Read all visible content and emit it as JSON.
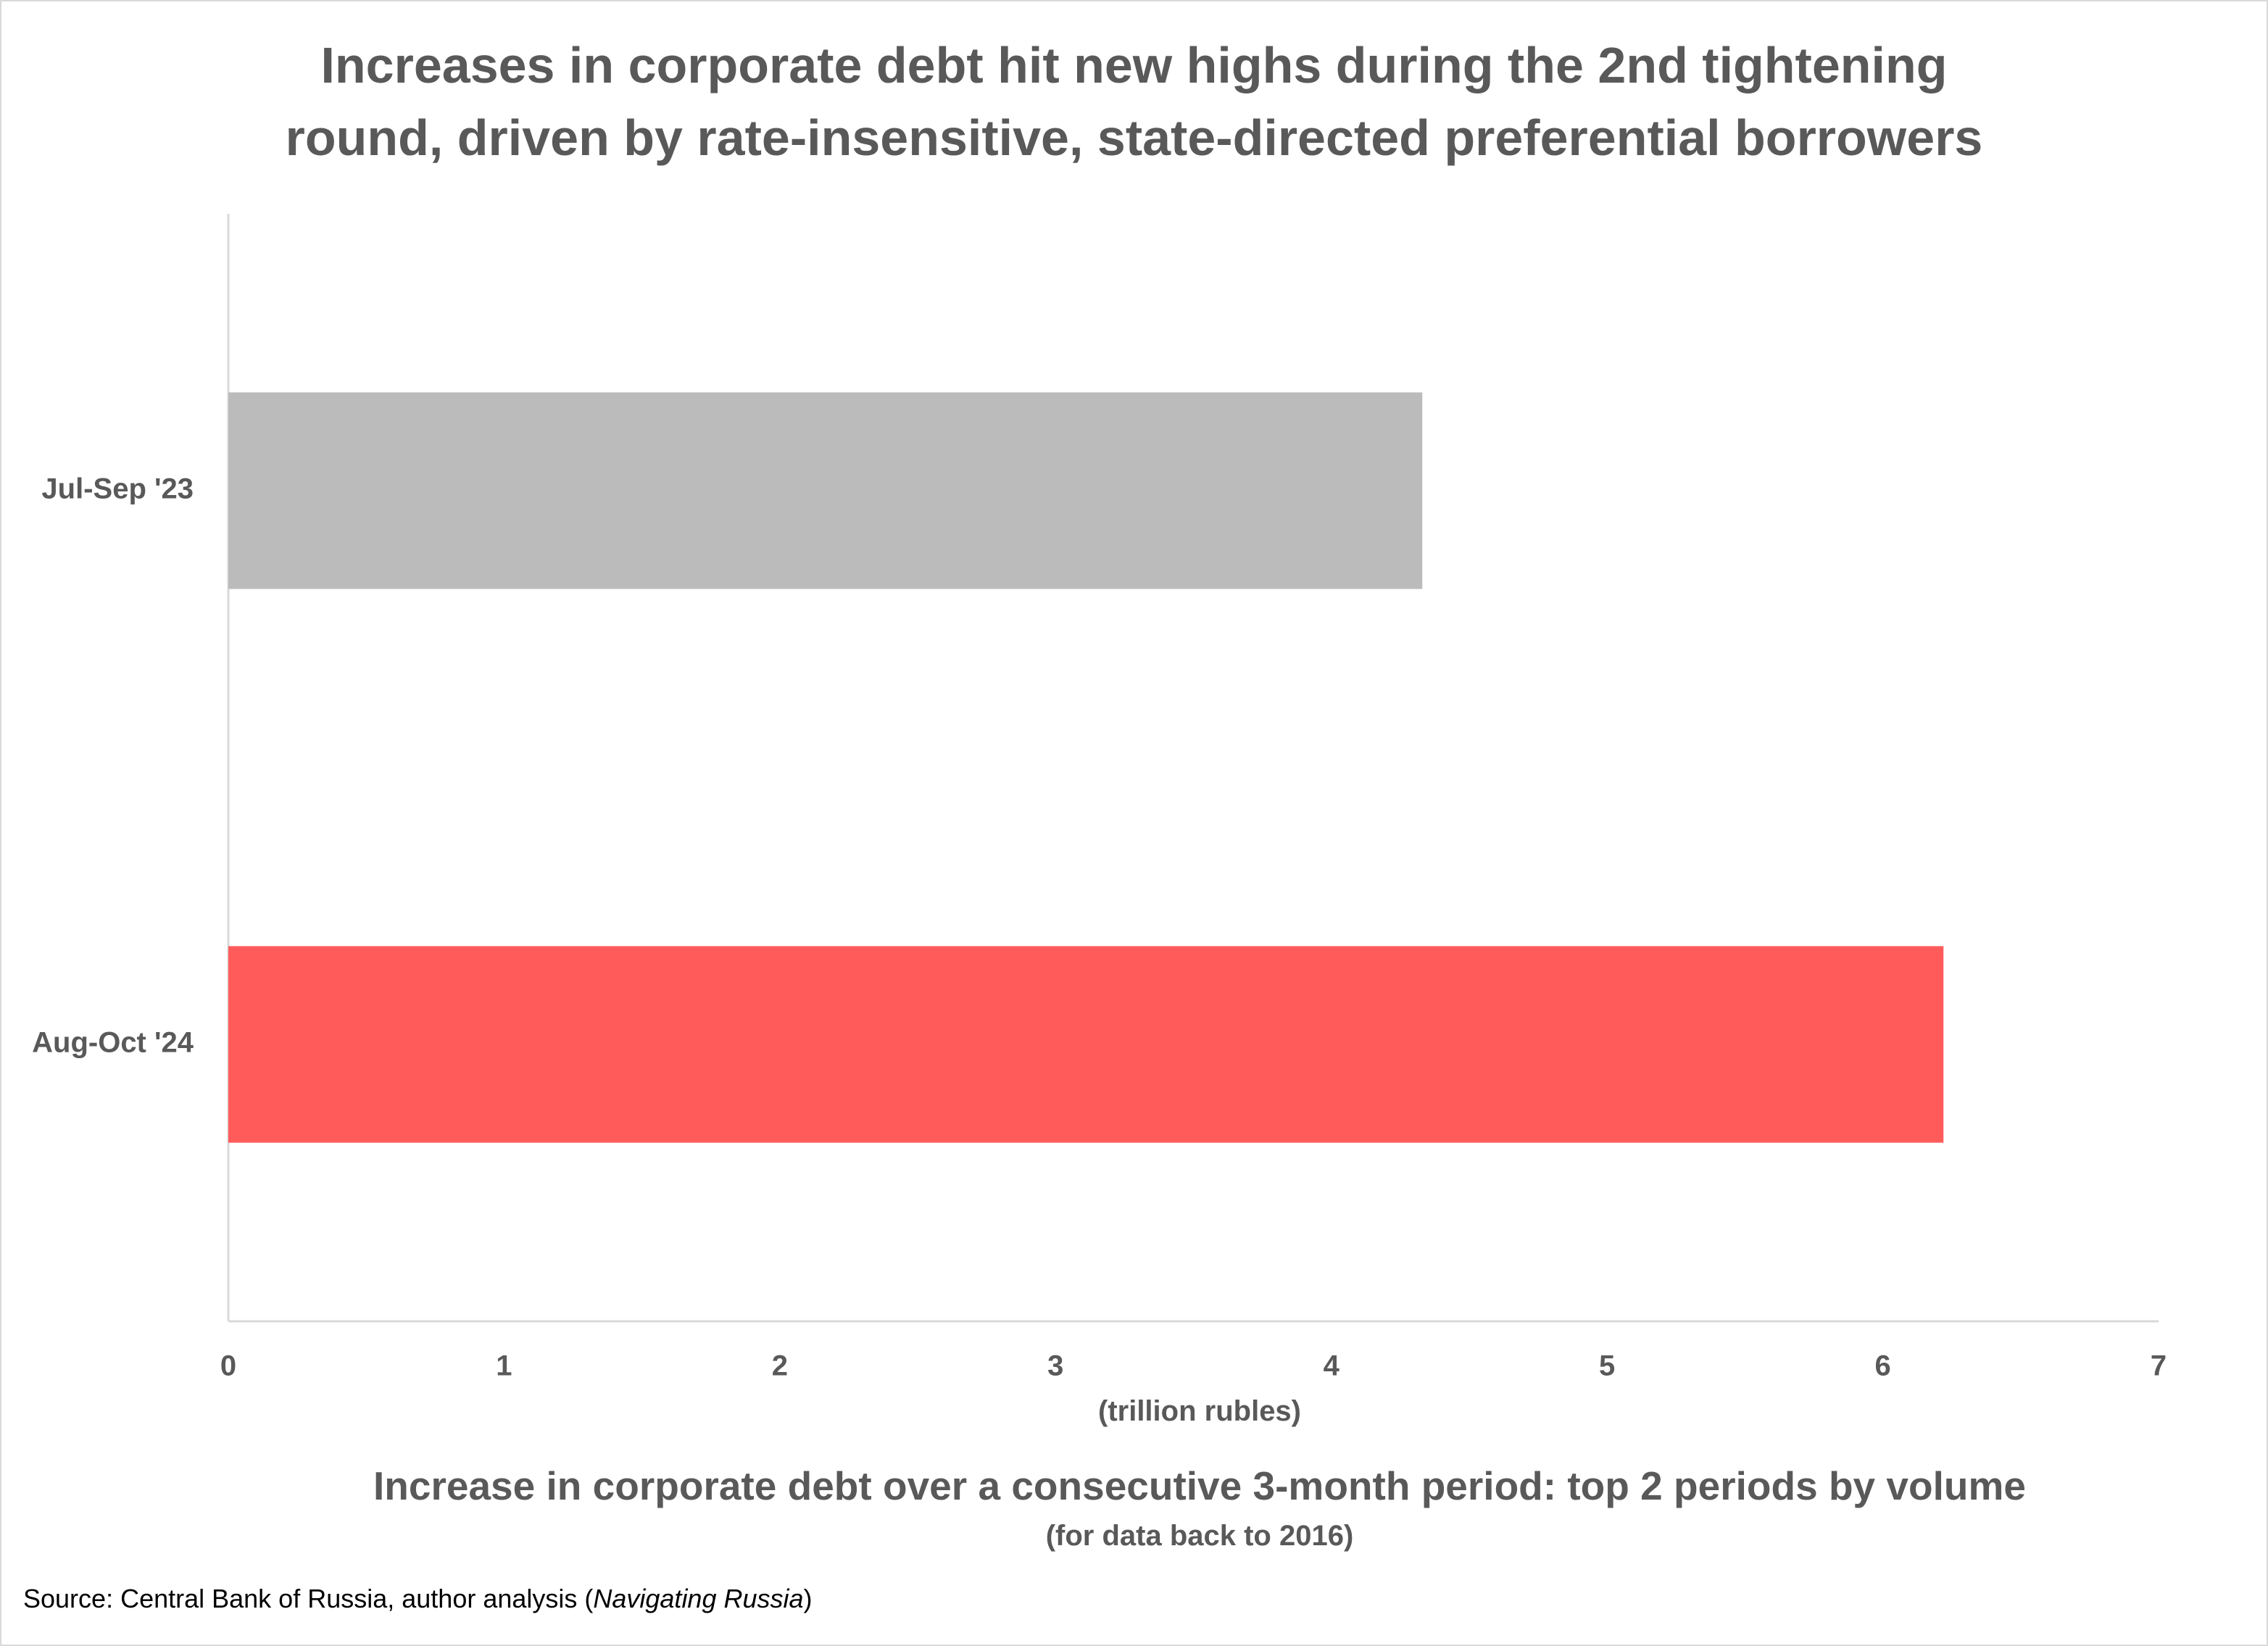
{
  "chart_data": {
    "type": "bar",
    "orientation": "horizontal",
    "title_lines": [
      "Increases in corporate debt hit new highs during the 2nd tightening",
      "round, driven by rate-insensitive, state-directed preferential borrowers"
    ],
    "categories": [
      "Jul-Sep '23",
      "Aug-Oct '24"
    ],
    "values": [
      4.33,
      6.22
    ],
    "bar_colors": [
      "#BBBBBB",
      "#FF5B5B"
    ],
    "xlim": [
      0,
      7
    ],
    "xticks": [
      "0",
      "1",
      "2",
      "3",
      "4",
      "5",
      "6",
      "7"
    ],
    "xlabel": "(trillion rubles)",
    "subtitle": "Increase in corporate debt over a consecutive 3-month period: top 2 periods by volume",
    "subnote": "(for data back to 2016)",
    "grid": false,
    "legend": "none"
  },
  "source": {
    "prefix": "Source: Central Bank of Russia, author analysis (",
    "italic": "Navigating Russia",
    "suffix": ")"
  },
  "colors": {
    "text": "#595959",
    "axis": "#d9d9d9"
  }
}
